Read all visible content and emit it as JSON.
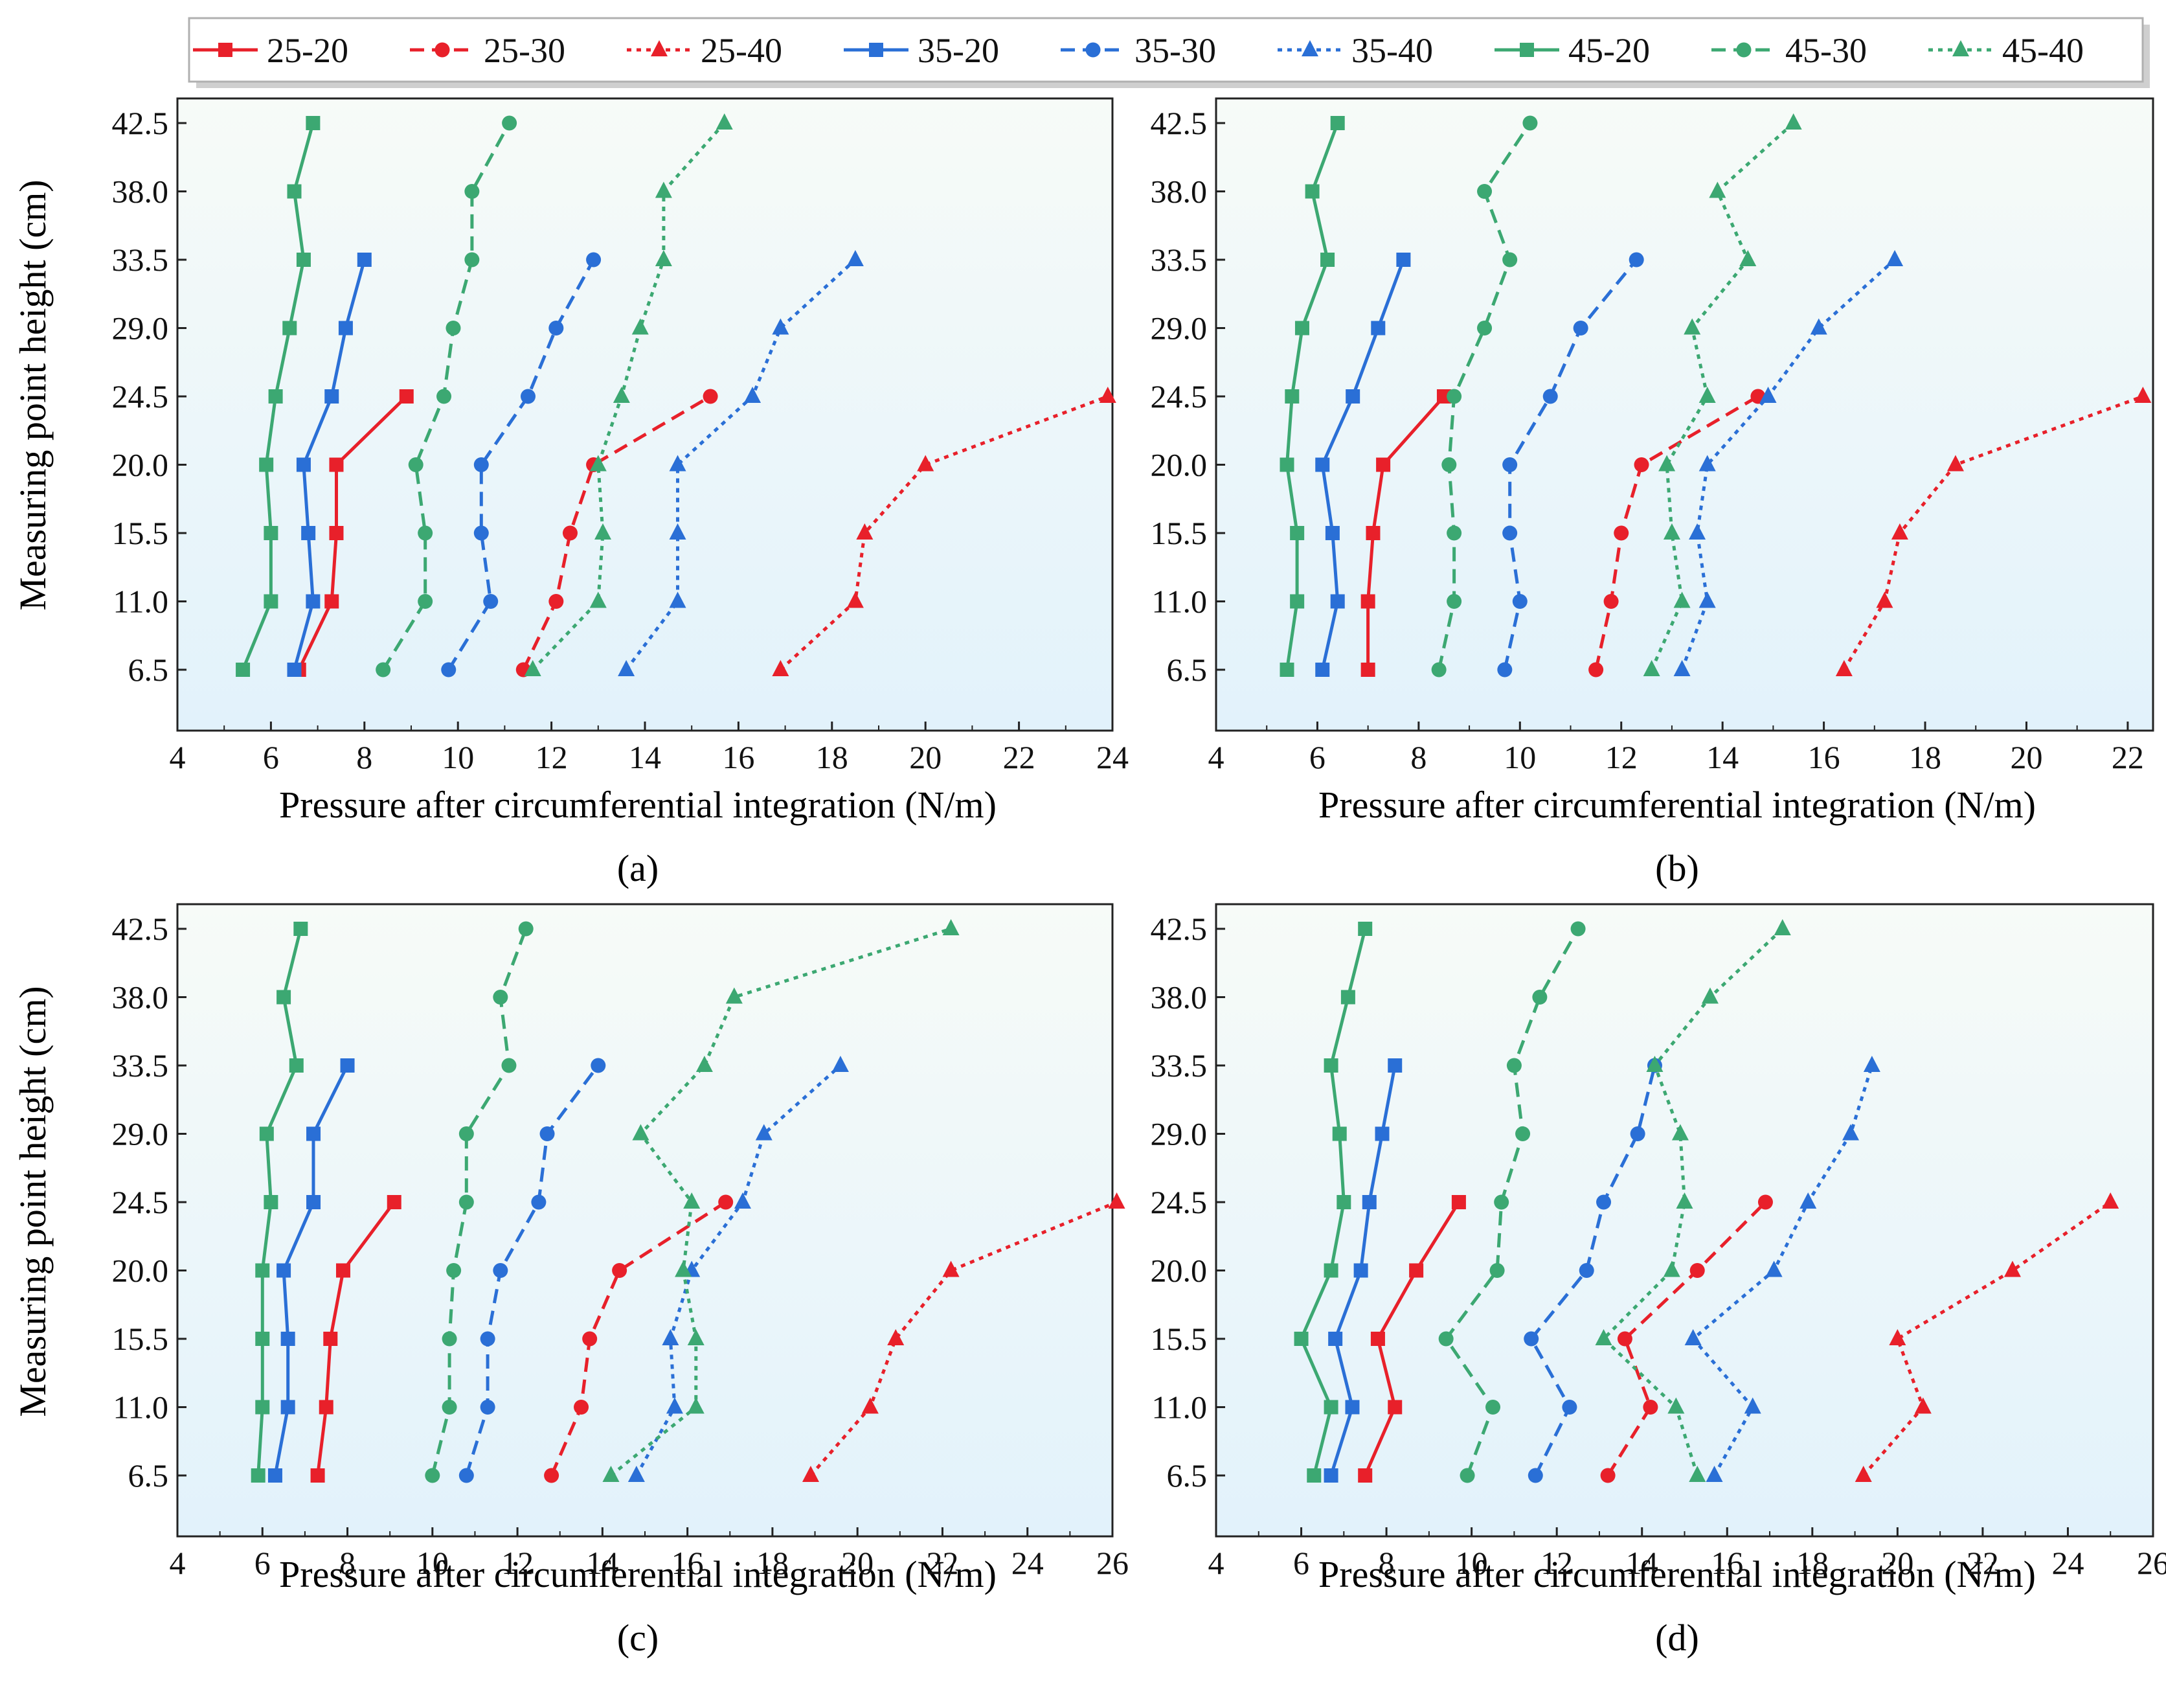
{
  "legend": {
    "entries": [
      {
        "label": "25-20",
        "series": 0
      },
      {
        "label": "25-30",
        "series": 1
      },
      {
        "label": "25-40",
        "series": 2
      },
      {
        "label": "35-20",
        "series": 3
      },
      {
        "label": "35-30",
        "series": 4
      },
      {
        "label": "35-40",
        "series": 5
      },
      {
        "label": "45-20",
        "series": 6
      },
      {
        "label": "45-30",
        "series": 7
      },
      {
        "label": "45-40",
        "series": 8
      }
    ]
  },
  "series_style": [
    {
      "color": "#e8202a",
      "dash": "solid",
      "marker": "square"
    },
    {
      "color": "#e8202a",
      "dash": "dashed",
      "marker": "circle"
    },
    {
      "color": "#e8202a",
      "dash": "dotted",
      "marker": "triangle"
    },
    {
      "color": "#2a6fd6",
      "dash": "solid",
      "marker": "square"
    },
    {
      "color": "#2a6fd6",
      "dash": "dashed",
      "marker": "circle"
    },
    {
      "color": "#2a6fd6",
      "dash": "dotted",
      "marker": "triangle"
    },
    {
      "color": "#3ca872",
      "dash": "solid",
      "marker": "square"
    },
    {
      "color": "#3ca872",
      "dash": "dashed",
      "marker": "circle"
    },
    {
      "color": "#3ca872",
      "dash": "dotted",
      "marker": "triangle"
    }
  ],
  "chart_data": [
    {
      "type": "line",
      "caption": "(a)",
      "xlabel": "Pressure after circumferential integration (N/m)",
      "ylabel": "Measuring point height (cm)",
      "xlim": [
        4,
        24
      ],
      "xticks": [
        "4",
        "6",
        "8",
        "10",
        "12",
        "14",
        "16",
        "18",
        "20",
        "22",
        "24"
      ],
      "y": [
        "6.5",
        "11.0",
        "15.5",
        "20.0",
        "24.5",
        "29.0",
        "33.5",
        "38.0",
        "42.5"
      ],
      "series": [
        {
          "name": "25-20",
          "values": [
            6.6,
            7.3,
            7.4,
            7.4,
            8.9
          ]
        },
        {
          "name": "25-30",
          "values": [
            11.4,
            12.1,
            12.4,
            12.9,
            15.4
          ]
        },
        {
          "name": "25-40",
          "values": [
            16.9,
            18.5,
            18.7,
            20.0,
            23.9
          ]
        },
        {
          "name": "35-20",
          "values": [
            6.5,
            6.9,
            6.8,
            6.7,
            7.3,
            7.6,
            8.0
          ]
        },
        {
          "name": "35-30",
          "values": [
            9.8,
            10.7,
            10.5,
            10.5,
            11.5,
            12.1,
            12.9
          ]
        },
        {
          "name": "35-40",
          "values": [
            13.6,
            14.7,
            14.7,
            14.7,
            16.3,
            16.9,
            18.5
          ]
        },
        {
          "name": "45-20",
          "values": [
            5.4,
            6.0,
            6.0,
            5.9,
            6.1,
            6.4,
            6.7,
            6.5,
            6.9
          ]
        },
        {
          "name": "45-30",
          "values": [
            8.4,
            9.3,
            9.3,
            9.1,
            9.7,
            9.9,
            10.3,
            10.3,
            11.1
          ]
        },
        {
          "name": "45-40",
          "values": [
            11.6,
            13.0,
            13.1,
            13.0,
            13.5,
            13.9,
            14.4,
            14.4,
            15.7
          ]
        }
      ]
    },
    {
      "type": "line",
      "caption": "(b)",
      "xlabel": "Pressure after circumferential integration (N/m)",
      "ylabel": "",
      "xlim": [
        4,
        22.5
      ],
      "xticks": [
        "4",
        "6",
        "8",
        "10",
        "12",
        "14",
        "16",
        "18",
        "20",
        "22"
      ],
      "y": [
        "6.5",
        "11.0",
        "15.5",
        "20.0",
        "24.5",
        "29.0",
        "33.5",
        "38.0",
        "42.5"
      ],
      "series": [
        {
          "name": "25-20",
          "values": [
            7.0,
            7.0,
            7.1,
            7.3,
            8.5
          ]
        },
        {
          "name": "25-30",
          "values": [
            11.5,
            11.8,
            12.0,
            12.4,
            14.7
          ]
        },
        {
          "name": "25-40",
          "values": [
            16.4,
            17.2,
            17.5,
            18.6,
            22.3
          ]
        },
        {
          "name": "35-20",
          "values": [
            6.1,
            6.4,
            6.3,
            6.1,
            6.7,
            7.2,
            7.7
          ]
        },
        {
          "name": "35-30",
          "values": [
            9.7,
            10.0,
            9.8,
            9.8,
            10.6,
            11.2,
            12.3
          ]
        },
        {
          "name": "35-40",
          "values": [
            13.2,
            13.7,
            13.5,
            13.7,
            14.9,
            15.9,
            17.4
          ]
        },
        {
          "name": "45-20",
          "values": [
            5.4,
            5.6,
            5.6,
            5.4,
            5.5,
            5.7,
            6.2,
            5.9,
            6.4
          ]
        },
        {
          "name": "45-30",
          "values": [
            8.4,
            8.7,
            8.7,
            8.6,
            8.7,
            9.3,
            9.8,
            9.3,
            10.2
          ]
        },
        {
          "name": "45-40",
          "values": [
            12.6,
            13.2,
            13.0,
            12.9,
            13.7,
            13.4,
            14.5,
            13.9,
            15.4
          ]
        }
      ]
    },
    {
      "type": "line",
      "caption": "(c)",
      "xlabel": "Pressure after circumferential integration (N/m)",
      "ylabel": "Measuring point height (cm)",
      "xlim": [
        4,
        26
      ],
      "xticks": [
        "4",
        "6",
        "8",
        "10",
        "12",
        "14",
        "16",
        "18",
        "20",
        "22",
        "24",
        "26"
      ],
      "y": [
        "6.5",
        "11.0",
        "15.5",
        "20.0",
        "24.5",
        "29.0",
        "33.5",
        "38.0",
        "42.5"
      ],
      "series": [
        {
          "name": "25-20",
          "values": [
            7.3,
            7.5,
            7.6,
            7.9,
            9.1
          ]
        },
        {
          "name": "25-30",
          "values": [
            12.8,
            13.5,
            13.7,
            14.4,
            16.9
          ]
        },
        {
          "name": "25-40",
          "values": [
            18.9,
            20.3,
            20.9,
            22.2,
            26.1
          ]
        },
        {
          "name": "35-20",
          "values": [
            6.3,
            6.6,
            6.6,
            6.5,
            7.2,
            7.2,
            8.0
          ]
        },
        {
          "name": "35-30",
          "values": [
            10.8,
            11.3,
            11.3,
            11.6,
            12.5,
            12.7,
            13.9
          ]
        },
        {
          "name": "35-40",
          "values": [
            14.8,
            15.7,
            15.6,
            16.1,
            17.3,
            17.8,
            19.6
          ]
        },
        {
          "name": "45-20",
          "values": [
            5.9,
            6.0,
            6.0,
            6.0,
            6.2,
            6.1,
            6.8,
            6.5,
            6.9
          ]
        },
        {
          "name": "45-30",
          "values": [
            10.0,
            10.4,
            10.4,
            10.5,
            10.8,
            10.8,
            11.8,
            11.6,
            12.2
          ]
        },
        {
          "name": "45-40",
          "values": [
            14.2,
            16.2,
            16.2,
            15.9,
            16.1,
            14.9,
            16.4,
            17.1,
            22.2
          ]
        }
      ]
    },
    {
      "type": "line",
      "caption": "(d)",
      "xlabel": "Pressure after circumferential integration (N/m)",
      "ylabel": "",
      "xlim": [
        4,
        26
      ],
      "xticks": [
        "4",
        "6",
        "8",
        "10",
        "12",
        "14",
        "16",
        "18",
        "20",
        "22",
        "24",
        "26"
      ],
      "y": [
        "6.5",
        "11.0",
        "15.5",
        "20.0",
        "24.5",
        "29.0",
        "33.5",
        "38.0",
        "42.5"
      ],
      "series": [
        {
          "name": "25-20",
          "values": [
            7.5,
            8.2,
            7.8,
            8.7,
            9.7
          ]
        },
        {
          "name": "25-30",
          "values": [
            13.2,
            14.2,
            13.6,
            15.3,
            16.9
          ]
        },
        {
          "name": "25-40",
          "values": [
            19.2,
            20.6,
            20.0,
            22.7,
            25.0
          ]
        },
        {
          "name": "35-20",
          "values": [
            6.7,
            7.2,
            6.8,
            7.4,
            7.6,
            7.9,
            8.2
          ]
        },
        {
          "name": "35-30",
          "values": [
            11.5,
            12.3,
            11.4,
            12.7,
            13.1,
            13.9,
            14.3
          ]
        },
        {
          "name": "35-40",
          "values": [
            15.7,
            16.6,
            15.2,
            17.1,
            17.9,
            18.9,
            19.4
          ]
        },
        {
          "name": "45-20",
          "values": [
            6.3,
            6.7,
            6.0,
            6.7,
            7.0,
            6.9,
            6.7,
            7.1,
            7.5
          ]
        },
        {
          "name": "45-30",
          "values": [
            9.9,
            10.5,
            9.4,
            10.6,
            10.7,
            11.2,
            11.0,
            11.6,
            12.5
          ]
        },
        {
          "name": "45-40",
          "values": [
            15.3,
            14.8,
            13.1,
            14.7,
            15.0,
            14.9,
            14.3,
            15.6,
            17.3
          ]
        }
      ]
    }
  ]
}
